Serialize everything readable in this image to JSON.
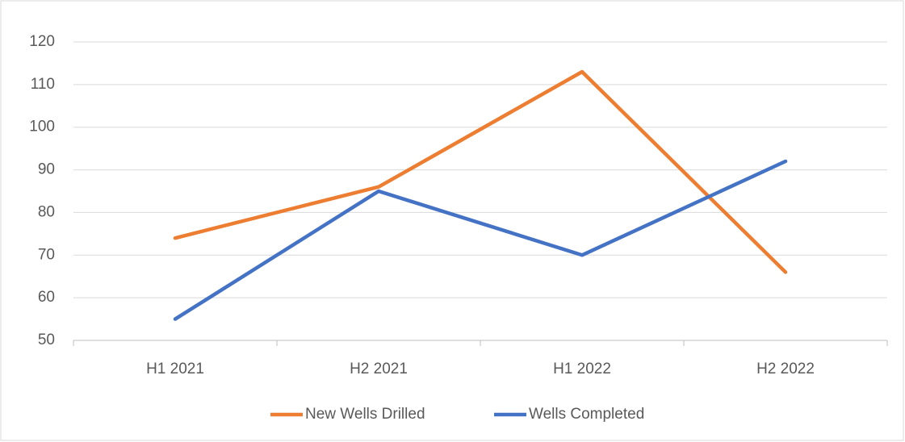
{
  "chart_data": {
    "type": "line",
    "categories": [
      "H1 2021",
      "H2 2021",
      "H1 2022",
      "H2 2022"
    ],
    "series": [
      {
        "name": "New Wells Drilled",
        "color": "#ed7d31",
        "values": [
          74,
          86,
          113,
          66
        ]
      },
      {
        "name": "Wells Completed",
        "color": "#4472c4",
        "values": [
          55,
          85,
          70,
          92
        ]
      }
    ],
    "ylim": [
      50,
      120
    ],
    "yticks": [
      50,
      60,
      70,
      80,
      90,
      100,
      110,
      120
    ],
    "grid": true,
    "legend": "bottom"
  }
}
